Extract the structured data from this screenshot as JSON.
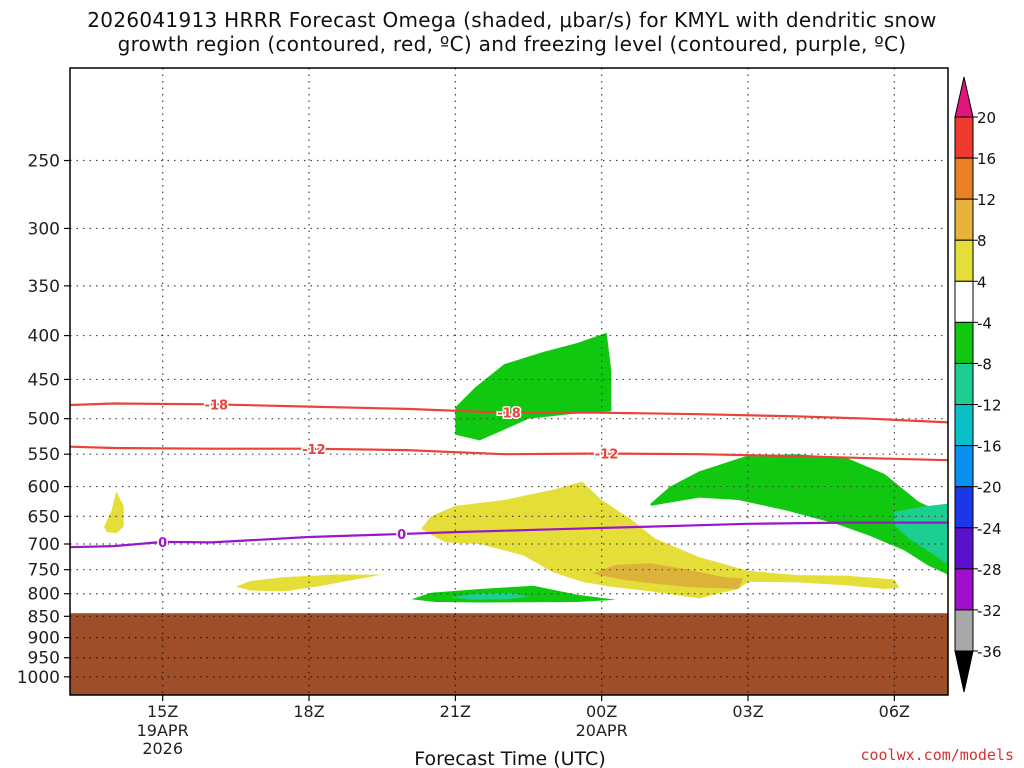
{
  "title": {
    "line1": "2026041913 HRRR Forecast Omega (shaded, μbar/s) for KMYL with dendritic snow",
    "line2": "growth region (contoured, red, ºC) and freezing level (contoured, purple, ºC)"
  },
  "credit": "coolwx.com/models",
  "chart_data": {
    "type": "contour",
    "xlabel": "Forecast Time (UTC)",
    "ylabel": "",
    "y_scale": "log-pressure (inverted)",
    "y_range_hPa": [
      1050,
      195
    ],
    "x_range_hours_after_15Z": [
      -1.9,
      16.1
    ],
    "grid": true,
    "y_ticks": [
      250,
      300,
      350,
      400,
      450,
      500,
      550,
      600,
      650,
      700,
      750,
      800,
      850,
      900,
      950,
      1000
    ],
    "x_ticks": [
      {
        "hour": 0,
        "label": "15Z",
        "sub": [
          "19APR",
          "2026"
        ]
      },
      {
        "hour": 3,
        "label": "18Z",
        "sub": []
      },
      {
        "hour": 6,
        "label": "21Z",
        "sub": []
      },
      {
        "hour": 9,
        "label": "00Z",
        "sub": [
          "20APR"
        ]
      },
      {
        "hour": 12,
        "label": "03Z",
        "sub": []
      },
      {
        "hour": 15,
        "label": "06Z",
        "sub": []
      }
    ],
    "ground_top_hPa": 843,
    "contours": [
      {
        "name": "-18",
        "color": "#e8443a",
        "points": [
          [
            -1.9,
            482
          ],
          [
            -1,
            480
          ],
          [
            1,
            481
          ],
          [
            3,
            484
          ],
          [
            5,
            487
          ],
          [
            7,
            492
          ],
          [
            9,
            492
          ],
          [
            11,
            494
          ],
          [
            13,
            497
          ],
          [
            14.5,
            500
          ],
          [
            16.1,
            505
          ]
        ],
        "labels": [
          [
            1.1,
            "-18"
          ],
          [
            7.1,
            "-18"
          ]
        ]
      },
      {
        "name": "-12",
        "color": "#e8443a",
        "points": [
          [
            -1.9,
            539
          ],
          [
            -1,
            541
          ],
          [
            1,
            542
          ],
          [
            3,
            542
          ],
          [
            5,
            544
          ],
          [
            7,
            550
          ],
          [
            9,
            549
          ],
          [
            11,
            550
          ],
          [
            13,
            553
          ],
          [
            14.5,
            556
          ],
          [
            16.1,
            559
          ]
        ],
        "labels": [
          [
            3.1,
            "-12"
          ],
          [
            9.1,
            "-12"
          ]
        ]
      },
      {
        "name": "0",
        "color": "#9a17c8",
        "points": [
          [
            -1.9,
            706
          ],
          [
            -1,
            704
          ],
          [
            0,
            696
          ],
          [
            1,
            697
          ],
          [
            3,
            687
          ],
          [
            4.7,
            682
          ],
          [
            6,
            678
          ],
          [
            8,
            673
          ],
          [
            10,
            668
          ],
          [
            12,
            663
          ],
          [
            14,
            661
          ],
          [
            16.1,
            661
          ]
        ],
        "labels": [
          [
            0,
            "0"
          ],
          [
            4.9,
            "0"
          ]
        ]
      }
    ],
    "shaded_regions": [
      {
        "range": "-8 to -4",
        "color": "#10c810",
        "points": [
          [
            6,
            485
          ],
          [
            6.4,
            460
          ],
          [
            7,
            432
          ],
          [
            7.8,
            418
          ],
          [
            8.5,
            408
          ],
          [
            9.1,
            397
          ],
          [
            9.2,
            440
          ],
          [
            9.2,
            490
          ],
          [
            8.5,
            493
          ],
          [
            7.5,
            500
          ],
          [
            7,
            515
          ],
          [
            6.5,
            530
          ],
          [
            6,
            522
          ]
        ]
      },
      {
        "range": "-8 to -4",
        "color": "#10c810",
        "points": [
          [
            10,
            628
          ],
          [
            10.4,
            600
          ],
          [
            11,
            576
          ],
          [
            12,
            552
          ],
          [
            13,
            550
          ],
          [
            14,
            555
          ],
          [
            14.8,
            580
          ],
          [
            15.5,
            625
          ],
          [
            16.1,
            648
          ],
          [
            16.1,
            760
          ],
          [
            15.7,
            742
          ],
          [
            15.2,
            712
          ],
          [
            14.5,
            685
          ],
          [
            13.8,
            663
          ],
          [
            12.8,
            640
          ],
          [
            11.8,
            622
          ],
          [
            11,
            618
          ],
          [
            10.5,
            625
          ],
          [
            10,
            632
          ]
        ]
      },
      {
        "range": "-8 to -4",
        "color": "#10c810",
        "points": [
          [
            5.1,
            812
          ],
          [
            5.5,
            798
          ],
          [
            6.5,
            790
          ],
          [
            7.6,
            783
          ],
          [
            8.5,
            802
          ],
          [
            9.3,
            813
          ],
          [
            8.5,
            818
          ],
          [
            6.5,
            819
          ],
          [
            5.6,
            818
          ]
        ]
      },
      {
        "range": "-12 to -8",
        "color": "#1ccf90",
        "points": [
          [
            15,
            642
          ],
          [
            15.6,
            633
          ],
          [
            16.1,
            628
          ],
          [
            16.1,
            740
          ],
          [
            15.8,
            720
          ],
          [
            15.3,
            690
          ],
          [
            15,
            665
          ]
        ]
      },
      {
        "range": "-12 to -8",
        "color": "#1ccf90",
        "points": [
          [
            5.9,
            808
          ],
          [
            6.4,
            800
          ],
          [
            7.1,
            798
          ],
          [
            7.5,
            806
          ],
          [
            7.1,
            812
          ],
          [
            6.4,
            813
          ]
        ]
      },
      {
        "range": "4 to 8",
        "color": "#e5de38",
        "points": [
          [
            -1.2,
            668
          ],
          [
            -1.05,
            640
          ],
          [
            -0.95,
            608
          ],
          [
            -0.8,
            632
          ],
          [
            -0.8,
            668
          ],
          [
            -0.95,
            680
          ],
          [
            -1.15,
            678
          ]
        ]
      },
      {
        "range": "4 to 8",
        "color": "#e5de38",
        "points": [
          [
            1.5,
            785
          ],
          [
            1.8,
            773
          ],
          [
            2.5,
            765
          ],
          [
            3.5,
            760
          ],
          [
            4.5,
            760
          ],
          [
            3.8,
            773
          ],
          [
            3.2,
            784
          ],
          [
            2.5,
            795
          ],
          [
            1.8,
            793
          ]
        ]
      },
      {
        "range": "4 to 8",
        "color": "#e5de38",
        "points": [
          [
            5.3,
            672
          ],
          [
            5.5,
            650
          ],
          [
            6,
            632
          ],
          [
            7,
            622
          ],
          [
            8,
            605
          ],
          [
            8.6,
            592
          ],
          [
            9,
            622
          ],
          [
            9.6,
            655
          ],
          [
            10.1,
            690
          ],
          [
            11,
            725
          ],
          [
            12,
            752
          ],
          [
            13,
            761
          ],
          [
            14,
            762
          ],
          [
            15,
            770
          ],
          [
            15.1,
            787
          ],
          [
            14.8,
            790
          ],
          [
            14,
            782
          ],
          [
            13,
            776
          ],
          [
            12,
            775
          ],
          [
            11.8,
            790
          ],
          [
            11,
            810
          ],
          [
            10,
            795
          ],
          [
            9.2,
            785
          ],
          [
            8.6,
            775
          ],
          [
            8,
            755
          ],
          [
            7.4,
            722
          ],
          [
            6.5,
            700
          ],
          [
            5.8,
            697
          ],
          [
            5.5,
            683
          ]
        ]
      },
      {
        "range": "8 to 12",
        "color": "#dcb33a",
        "points": [
          [
            8.8,
            758
          ],
          [
            9.3,
            740
          ],
          [
            10,
            737
          ],
          [
            10.8,
            750
          ],
          [
            11.5,
            765
          ],
          [
            11.9,
            768
          ],
          [
            11.8,
            790
          ],
          [
            10.8,
            786
          ],
          [
            10,
            778
          ],
          [
            9.4,
            770
          ]
        ]
      }
    ],
    "colorbar": {
      "units": "μbar/s",
      "labels": [
        "20",
        "16",
        "12",
        "8",
        "4",
        "-4",
        "-8",
        "-12",
        "-16",
        "-20",
        "-24",
        "-28",
        "-32",
        "-36"
      ],
      "segments": [
        {
          "range": "> 20",
          "color": "#e0167c"
        },
        {
          "range": "16 to 20",
          "color": "#f03a30"
        },
        {
          "range": "12 to 16",
          "color": "#e98124"
        },
        {
          "range": "8 to 12",
          "color": "#e8b13a"
        },
        {
          "range": "4 to 8",
          "color": "#e5de38"
        },
        {
          "range": "-4 to 4",
          "color": "#ffffff"
        },
        {
          "range": "-8 to -4",
          "color": "#10c810"
        },
        {
          "range": "-12 to -8",
          "color": "#1ccf90"
        },
        {
          "range": "-16 to -12",
          "color": "#0ac0c8"
        },
        {
          "range": "-20 to -16",
          "color": "#0a90f0"
        },
        {
          "range": "-24 to -20",
          "color": "#1a38e8"
        },
        {
          "range": "-28 to -24",
          "color": "#5a10cc"
        },
        {
          "range": "-32 to -28",
          "color": "#a010cc"
        },
        {
          "range": "-36 to -32",
          "color": "#a8a8a8"
        },
        {
          "range": "< -36",
          "color": "#000000"
        }
      ]
    }
  }
}
